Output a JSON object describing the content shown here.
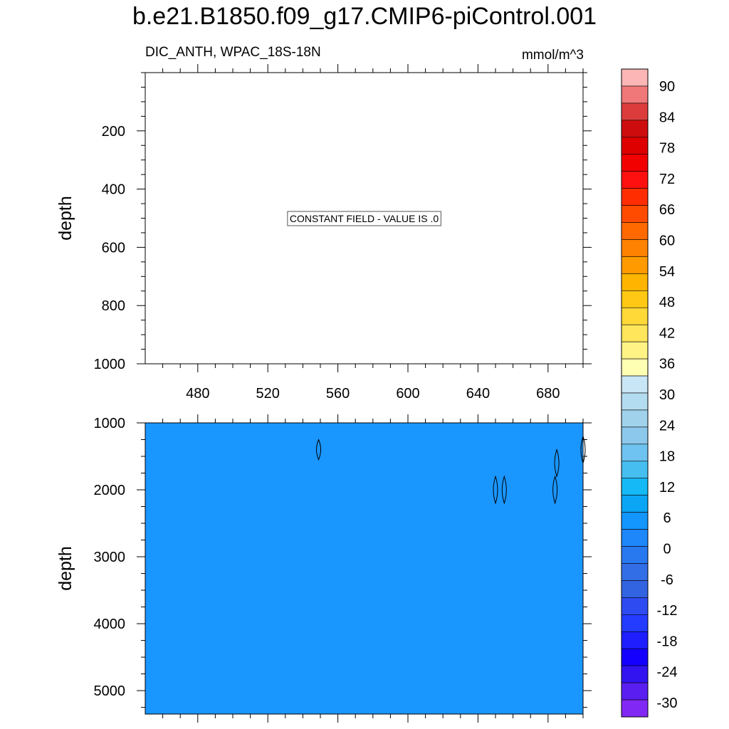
{
  "header": {
    "title": "b.e21.B1850.f09_g17.CMIP6-piControl.001",
    "subtitle_left": "DIC_ANTH, WPAC_18S-18N",
    "subtitle_right": "mmol/m^3"
  },
  "chart_data": [
    {
      "type": "heatmap",
      "panel": "upper",
      "ylabel": "depth",
      "xlabel": "",
      "x_range": [
        450,
        700
      ],
      "y_range": [
        0,
        1000
      ],
      "y_reversed": true,
      "x_ticks": [
        480,
        520,
        560,
        600,
        640,
        680
      ],
      "y_ticks": [
        200,
        400,
        600,
        800,
        1000
      ],
      "fill": "none",
      "annotation": "CONSTANT FIELD - VALUE IS .0"
    },
    {
      "type": "heatmap",
      "panel": "lower",
      "ylabel": "depth",
      "xlabel": "",
      "x_range": [
        450,
        700
      ],
      "y_range": [
        1000,
        5350
      ],
      "y_reversed": true,
      "y_ticks": [
        1000,
        2000,
        3000,
        4000,
        5000
      ],
      "fill_color": "#1a96ff",
      "contours": [
        {
          "x": 549,
          "y_top": 1250,
          "y_bottom": 1550
        },
        {
          "x": 650,
          "y_top": 1800,
          "y_bottom": 2200
        },
        {
          "x": 655,
          "y_top": 1800,
          "y_bottom": 2200
        },
        {
          "x": 684,
          "y_top": 1800,
          "y_bottom": 2200
        },
        {
          "x": 685,
          "y_top": 1400,
          "y_bottom": 1800
        },
        {
          "x": 700,
          "y_top": 1200,
          "y_bottom": 1600
        }
      ]
    }
  ],
  "colorbar": {
    "labels": [
      "90",
      "84",
      "78",
      "72",
      "66",
      "60",
      "54",
      "48",
      "42",
      "36",
      "30",
      "24",
      "18",
      "12",
      "6",
      "0",
      "-6",
      "-12",
      "-18",
      "-24",
      "-30"
    ],
    "colors": [
      "#fdb6b6",
      "#f07878",
      "#dc3c3c",
      "#cd0d0d",
      "#de0000",
      "#f20000",
      "#ff1010",
      "#ff2d00",
      "#ff4b00",
      "#ff6900",
      "#ff8200",
      "#ff9b00",
      "#ffb400",
      "#ffc814",
      "#ffd937",
      "#ffe65a",
      "#fff385",
      "#ffffb4",
      "#c8e6f5",
      "#b4dcf0",
      "#a0d2eb",
      "#8cc8eb",
      "#6ec3f0",
      "#46bef0",
      "#14b9f5",
      "#0aa5f5",
      "#1496ff",
      "#1e87fa",
      "#2878f0",
      "#326ee6",
      "#3264e1",
      "#2d4bf0",
      "#233cff",
      "#1e1eff",
      "#1400ff",
      "#3214f0",
      "#5a1ef0",
      "#8228f5"
    ]
  }
}
